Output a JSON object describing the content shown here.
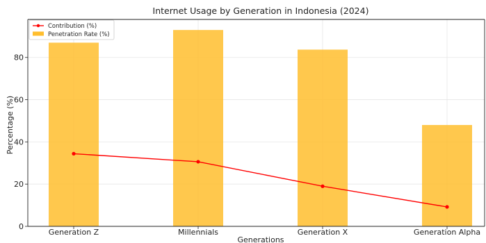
{
  "chart_data": {
    "type": "bar",
    "title": "Internet Usage by Generation in Indonesia (2024)",
    "xlabel": "Generations",
    "ylabel": "Percentage (%)",
    "categories": [
      "Generation Z",
      "Millennials",
      "Generation X",
      "Generation Alpha"
    ],
    "ylim": [
      0,
      98
    ],
    "yticks": [
      0,
      20,
      40,
      60,
      80
    ],
    "grid": true,
    "legend_position": "top-left",
    "series": [
      {
        "name": "Contribution (%)",
        "kind": "line",
        "color": "#ff0000",
        "values": [
          34.4,
          30.6,
          19.0,
          9.2
        ]
      },
      {
        "name": "Penetration Rate (%)",
        "kind": "bar",
        "color": "#ffbe2e",
        "values": [
          87.0,
          93.0,
          83.7,
          48.0
        ]
      }
    ]
  }
}
